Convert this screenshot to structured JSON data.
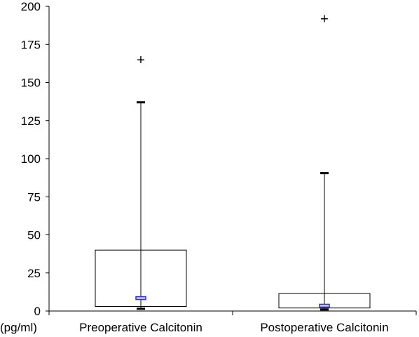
{
  "chart_data": {
    "type": "boxplot",
    "title": "",
    "xlabel": "",
    "ylabel": "",
    "unit_label": "(pg/ml)",
    "ylim": [
      0,
      200
    ],
    "yticks": [
      0,
      25,
      50,
      75,
      100,
      125,
      150,
      175,
      200
    ],
    "grid": false,
    "categories": [
      "Preoperative Calcitonin",
      "Postoperative Calcitonin"
    ],
    "boxes": [
      {
        "min": 1.5,
        "q1": 3,
        "median": 8.5,
        "q3": 40,
        "max": 137,
        "outliers": [
          165
        ]
      },
      {
        "min": 1,
        "q1": 2,
        "median": 3.5,
        "q3": 11.5,
        "max": 90.5,
        "outliers": [
          192
        ]
      }
    ],
    "colors": {
      "axis": "#000000",
      "box": "#000000",
      "median": "#3333cc",
      "median_fill": "#ccccff"
    },
    "outlier_marker": "+"
  }
}
